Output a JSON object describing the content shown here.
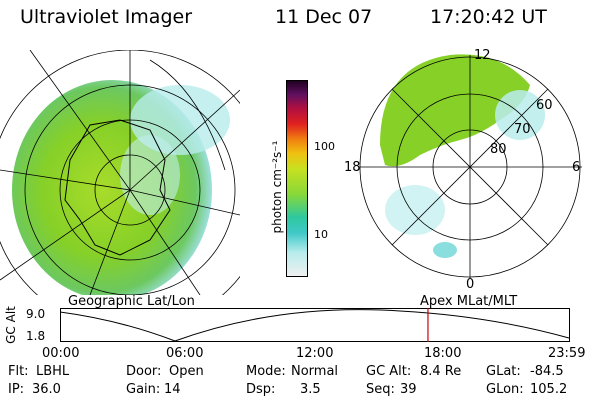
{
  "header": {
    "title": "Ultraviolet Imager",
    "date": "11 Dec 07",
    "time": "17:20:42 UT"
  },
  "colorbar": {
    "unit_label": "photon cm⁻²s⁻¹",
    "ticks": [
      "100",
      "10"
    ]
  },
  "left_map": {
    "label": "Geographic Lat/Lon"
  },
  "right_map": {
    "label": "Apex MLat/MLT",
    "mlt_labels": [
      "12",
      "18",
      "6",
      "0"
    ],
    "mlat_labels": [
      "60",
      "70",
      "80"
    ]
  },
  "altitude_plot": {
    "ylabel": "GC Alt",
    "y_ticks": [
      "9.0",
      "1.8"
    ],
    "x_ticks": [
      "00:00",
      "06:00",
      "12:00",
      "18:00",
      "23:59"
    ],
    "current_time_hours": 17.35
  },
  "status": {
    "row1": [
      {
        "label": "Flt:",
        "value": "LBHL"
      },
      {
        "label": "Door:",
        "value": "Open"
      },
      {
        "label": "Mode:",
        "value": "Normal"
      },
      {
        "label": "GC Alt:",
        "value": "8.4 Re"
      },
      {
        "label": "GLat:",
        "value": "-84.5"
      }
    ],
    "row2": [
      {
        "label": "IP:",
        "value": "36.0"
      },
      {
        "label": "Gain:",
        "value": "14"
      },
      {
        "label": "Dsp:",
        "value": "3.5"
      },
      {
        "label": "Seq:",
        "value": "39"
      },
      {
        "label": "GLon:",
        "value": "105.2"
      }
    ]
  },
  "colors": {
    "aurora_green": "#7ccc22",
    "aurora_yellow": "#b8e010",
    "cyan": "#5ad0d0",
    "marker_red": "#cc0000"
  }
}
